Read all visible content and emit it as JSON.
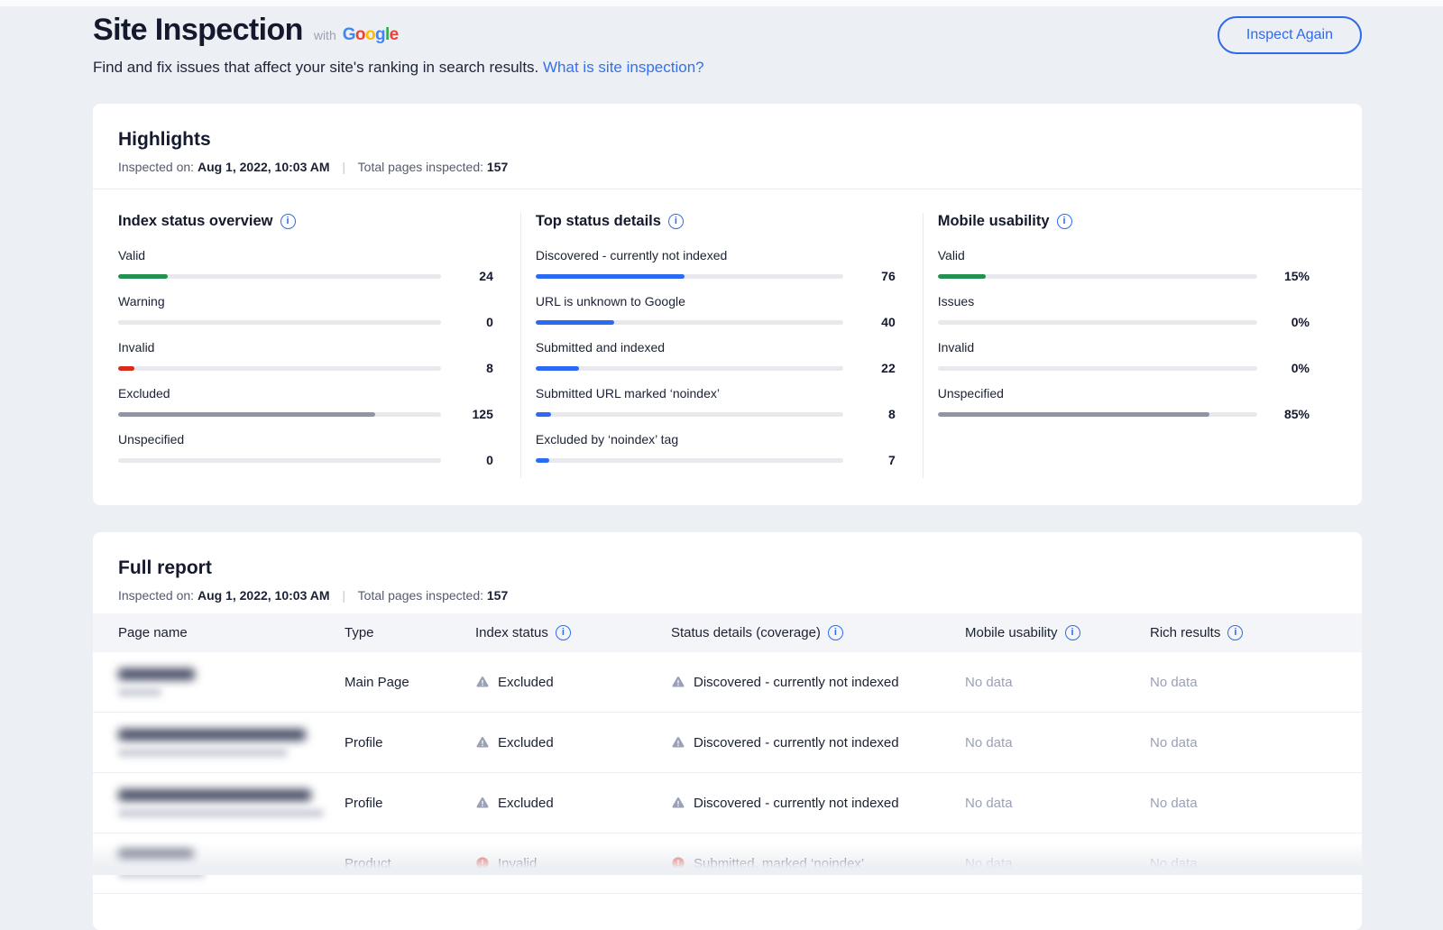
{
  "icons": {
    "info_glyph": "i"
  },
  "colors": {
    "green": "#23914F",
    "red": "#D92A1A",
    "slate": "#8F94A9",
    "blue": "#2B6BF3",
    "accent": "#2E6BEC",
    "warning_gray": "#9CA1B6",
    "error_red": "#E02416"
  },
  "header": {
    "title": "Site Inspection",
    "with_label": "with",
    "google_letters": [
      {
        "ch": "G",
        "color": "#4285F4"
      },
      {
        "ch": "o",
        "color": "#EA4335"
      },
      {
        "ch": "o",
        "color": "#FBBC05"
      },
      {
        "ch": "g",
        "color": "#4285F4"
      },
      {
        "ch": "l",
        "color": "#34A853"
      },
      {
        "ch": "e",
        "color": "#EA4335"
      }
    ],
    "subtitle": "Find and fix issues that affect your site's ranking in search results.",
    "subtitle_link": "What is site inspection?",
    "inspect_again_label": "Inspect Again"
  },
  "highlights": {
    "title": "Highlights",
    "meta": {
      "inspected_on_label": "Inspected on:",
      "inspected_on_value": "Aug 1, 2022, 10:03 AM",
      "separator": "|",
      "total_label": "Total pages inspected:",
      "total_value": "157"
    },
    "columns": [
      {
        "title": "Index status overview",
        "items": [
          {
            "label": "Valid",
            "value": "24",
            "pct": 15.3,
            "color": "green"
          },
          {
            "label": "Warning",
            "value": "0",
            "pct": 0,
            "color": "green"
          },
          {
            "label": "Invalid",
            "value": "8",
            "pct": 5.1,
            "color": "red"
          },
          {
            "label": "Excluded",
            "value": "125",
            "pct": 79.6,
            "color": "slate"
          },
          {
            "label": "Unspecified",
            "value": "0",
            "pct": 0,
            "color": "slate"
          }
        ]
      },
      {
        "title": "Top status details",
        "items": [
          {
            "label": "Discovered - currently not indexed",
            "value": "76",
            "pct": 48.4,
            "color": "blue"
          },
          {
            "label": "URL is unknown to Google",
            "value": "40",
            "pct": 25.5,
            "color": "blue"
          },
          {
            "label": "Submitted and indexed",
            "value": "22",
            "pct": 14,
            "color": "blue"
          },
          {
            "label": "Submitted URL marked ‘noindex’",
            "value": "8",
            "pct": 5.1,
            "color": "blue"
          },
          {
            "label": "Excluded by ‘noindex’ tag",
            "value": "7",
            "pct": 4.5,
            "color": "blue"
          }
        ]
      },
      {
        "title": "Mobile usability",
        "items": [
          {
            "label": "Valid",
            "value": "15%",
            "pct": 15,
            "color": "green"
          },
          {
            "label": "Issues",
            "value": "0%",
            "pct": 0,
            "color": "green"
          },
          {
            "label": "Invalid",
            "value": "0%",
            "pct": 0,
            "color": "red"
          },
          {
            "label": "Unspecified",
            "value": "85%",
            "pct": 85,
            "color": "slate"
          }
        ]
      }
    ]
  },
  "report": {
    "title": "Full report",
    "meta": {
      "inspected_on_label": "Inspected on:",
      "inspected_on_value": "Aug 1, 2022, 10:03 AM",
      "separator": "|",
      "total_label": "Total pages inspected:",
      "total_value": "157"
    },
    "columns": [
      {
        "label": "Page name",
        "info": false
      },
      {
        "label": "Type",
        "info": false
      },
      {
        "label": "Index status",
        "info": true
      },
      {
        "label": "Status details (coverage)",
        "info": true
      },
      {
        "label": "Mobile usability",
        "info": true
      },
      {
        "label": "Rich results",
        "info": true
      }
    ],
    "rows": [
      {
        "type": "Main Page",
        "index_status": {
          "icon": "warning",
          "text": "Excluded"
        },
        "status_details": {
          "icon": "warning",
          "text": "Discovered - currently not indexed"
        },
        "mobile_usability": "No data",
        "rich_results": "No data",
        "redacted_name_widths": [
          85,
          48
        ]
      },
      {
        "type": "Profile",
        "index_status": {
          "icon": "warning",
          "text": "Excluded"
        },
        "status_details": {
          "icon": "warning",
          "text": "Discovered - currently not indexed"
        },
        "mobile_usability": "No data",
        "rich_results": "No data",
        "redacted_name_widths": [
          208,
          188
        ]
      },
      {
        "type": "Profile",
        "index_status": {
          "icon": "warning",
          "text": "Excluded"
        },
        "status_details": {
          "icon": "warning",
          "text": "Discovered - currently not indexed"
        },
        "mobile_usability": "No data",
        "rich_results": "No data",
        "redacted_name_widths": [
          214,
          228
        ]
      },
      {
        "type": "Product",
        "index_status": {
          "icon": "error",
          "text": "Invalid"
        },
        "status_details": {
          "icon": "error",
          "text": "Submitted, marked ‘noindex’"
        },
        "mobile_usability": "No data",
        "rich_results": "No data",
        "redacted_name_widths": [
          84,
          96
        ]
      }
    ]
  }
}
